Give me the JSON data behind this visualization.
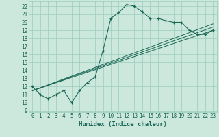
{
  "xlabel": "Humidex (Indice chaleur)",
  "bg_color": "#cce8dc",
  "line_color": "#1a6655",
  "grid_color": "#99ccbb",
  "xlim": [
    -0.5,
    23.5
  ],
  "ylim": [
    8.8,
    22.6
  ],
  "xticks": [
    0,
    1,
    2,
    3,
    4,
    5,
    6,
    7,
    8,
    9,
    10,
    11,
    12,
    13,
    14,
    15,
    16,
    17,
    18,
    19,
    20,
    21,
    22,
    23
  ],
  "yticks": [
    9,
    10,
    11,
    12,
    13,
    14,
    15,
    16,
    17,
    18,
    19,
    20,
    21,
    22
  ],
  "main_x": [
    0,
    1,
    2,
    3,
    4,
    5,
    6,
    7,
    8,
    9,
    10,
    11,
    12,
    13,
    14,
    15,
    16,
    17,
    18,
    19,
    20,
    21,
    22,
    23
  ],
  "main_y": [
    12.0,
    11.0,
    10.5,
    11.0,
    11.5,
    10.0,
    11.5,
    12.5,
    13.2,
    16.5,
    20.5,
    21.2,
    22.2,
    22.0,
    21.3,
    20.5,
    20.5,
    20.2,
    20.0,
    20.0,
    19.0,
    18.5,
    18.5,
    19.0
  ],
  "line1_x": [
    0,
    23
  ],
  "line1_y": [
    11.5,
    19.0
  ],
  "line2_x": [
    0,
    23
  ],
  "line2_y": [
    11.5,
    19.4
  ],
  "line3_x": [
    0,
    23
  ],
  "line3_y": [
    11.5,
    19.8
  ],
  "tick_fontsize": 5.5,
  "xlabel_fontsize": 6.5
}
